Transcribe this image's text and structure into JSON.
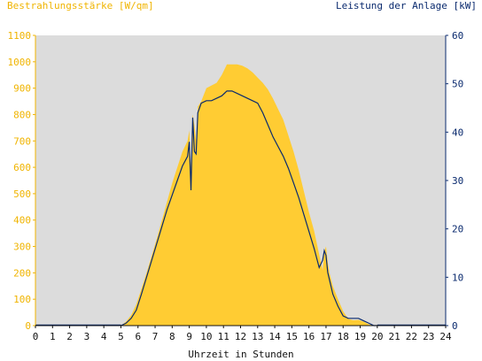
{
  "chart_data": {
    "type": "area",
    "title": "",
    "ylabel_left": "Bestrahlungsstärke [W/qm]",
    "ylabel_right": "Leistung der Anlage [kW]",
    "xlabel": "Uhrzeit in Stunden",
    "xlim": [
      0,
      24
    ],
    "ylim_left": [
      0,
      1100
    ],
    "ylim_right": [
      0,
      60
    ],
    "x_ticks": [
      "0",
      "1",
      "2",
      "3",
      "4",
      "5",
      "6",
      "7",
      "8",
      "9",
      "10",
      "11",
      "12",
      "13",
      "14",
      "15",
      "16",
      "17",
      "18",
      "19",
      "20",
      "21",
      "22",
      "23",
      "24"
    ],
    "y_left_ticks": [
      "0",
      "100",
      "200",
      "300",
      "400",
      "500",
      "600",
      "700",
      "800",
      "900",
      "1000",
      "1100"
    ],
    "y_right_ticks": [
      "0",
      "10",
      "20",
      "30",
      "40",
      "50",
      "60"
    ],
    "grid": false,
    "series": [
      {
        "name": "Bestrahlungsstärke [W/qm]",
        "axis": "left",
        "style": "area",
        "x": [
          5.0,
          5.3,
          5.6,
          5.9,
          6.2,
          6.5,
          6.8,
          7.1,
          7.4,
          7.7,
          8.0,
          8.3,
          8.6,
          8.9,
          9.0,
          9.1,
          9.2,
          9.3,
          9.4,
          9.5,
          9.7,
          10.0,
          10.3,
          10.6,
          10.9,
          11.2,
          11.5,
          11.8,
          12.1,
          12.4,
          12.7,
          13.0,
          13.3,
          13.6,
          13.9,
          14.2,
          14.5,
          14.8,
          15.1,
          15.4,
          15.7,
          16.0,
          16.3,
          16.6,
          16.8,
          16.9,
          17.0,
          17.1,
          17.2,
          17.4,
          17.7,
          18.0,
          18.3,
          18.6,
          18.9,
          19.2,
          19.5,
          19.8,
          20.0
        ],
        "y": [
          0,
          15,
          40,
          80,
          140,
          200,
          265,
          330,
          400,
          470,
          540,
          600,
          660,
          700,
          740,
          600,
          800,
          760,
          700,
          830,
          850,
          900,
          910,
          920,
          950,
          990,
          990,
          990,
          985,
          975,
          960,
          940,
          920,
          895,
          860,
          820,
          780,
          720,
          660,
          590,
          510,
          430,
          360,
          270,
          210,
          280,
          300,
          240,
          200,
          150,
          100,
          55,
          25,
          20,
          22,
          15,
          5,
          0,
          0
        ]
      },
      {
        "name": "Leistung der Anlage [kW]",
        "axis": "right",
        "style": "line",
        "color": "#0a2a6e",
        "x": [
          5.0,
          5.3,
          5.6,
          5.9,
          6.2,
          6.5,
          6.8,
          7.1,
          7.4,
          7.7,
          8.0,
          8.3,
          8.6,
          8.9,
          9.0,
          9.1,
          9.2,
          9.3,
          9.4,
          9.5,
          9.7,
          10.0,
          10.3,
          10.6,
          10.9,
          11.2,
          11.5,
          11.8,
          12.1,
          12.4,
          12.7,
          13.0,
          13.3,
          13.6,
          13.9,
          14.2,
          14.5,
          14.8,
          15.1,
          15.4,
          15.7,
          16.0,
          16.3,
          16.6,
          16.8,
          16.9,
          17.0,
          17.1,
          17.2,
          17.4,
          17.7,
          18.0,
          18.3,
          18.6,
          18.9,
          19.2,
          19.5,
          19.8,
          20.0
        ],
        "y": [
          0,
          0.5,
          1.5,
          3.2,
          6.5,
          10,
          13.5,
          17,
          20.5,
          24,
          27,
          30,
          33,
          35,
          38,
          28,
          43,
          36,
          35.5,
          44,
          46,
          46.5,
          46.5,
          47,
          47.5,
          48.5,
          48.5,
          48,
          47.5,
          47,
          46.5,
          46,
          44,
          41.5,
          39,
          37,
          35,
          32.5,
          29.5,
          26.5,
          23,
          19.5,
          16,
          12,
          13.5,
          15.5,
          14.5,
          11,
          9.5,
          6.5,
          4,
          2,
          1.5,
          1.5,
          1.5,
          1,
          0.5,
          0,
          0
        ]
      }
    ],
    "colors": {
      "area_fill": "#ffcc33",
      "line": "#0a2a6e",
      "plot_bg": "#dcdcdc",
      "left_axis_text": "#f0b400",
      "right_axis_text": "#0a2a6e"
    }
  }
}
